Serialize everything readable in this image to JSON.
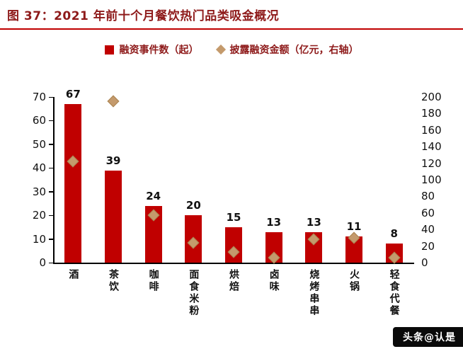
{
  "title": "图 37：2021 年前十个月餐饮热门品类吸金概况",
  "watermark": "头条@认是",
  "legend": [
    {
      "label": "融资事件数（起）",
      "marker": "square",
      "color": "#c00000"
    },
    {
      "label": "披露融资金额（亿元，右轴）",
      "marker": "diamond",
      "color": "#c49a6c"
    }
  ],
  "colors": {
    "bar": "#c00000",
    "diamond": "#c49a6c",
    "diamond_border": "#a8824f",
    "title": "#8e1a1a",
    "underline": "#c00000",
    "axis": "#000000",
    "tick_text": "#111111"
  },
  "chart_data": {
    "type": "bar",
    "title": "2021 年前十个月餐饮热门品类吸金概况",
    "categories": [
      "酒",
      "茶饮",
      "咖啡",
      "面食米粉",
      "烘焙",
      "卤味",
      "烧烤串串",
      "火锅",
      "轻食代餐"
    ],
    "series": [
      {
        "name": "融资事件数（起）",
        "type": "bar",
        "axis": "left",
        "values": [
          67,
          39,
          24,
          20,
          15,
          13,
          13,
          11,
          8
        ]
      },
      {
        "name": "披露融资金额（亿元，右轴）",
        "type": "scatter",
        "axis": "right",
        "values": [
          122,
          195,
          57,
          24,
          13,
          6,
          28,
          30,
          6
        ]
      }
    ],
    "bar_value_labels": [
      67,
      39,
      24,
      20,
      15,
      13,
      13,
      11,
      8
    ],
    "left_axis": {
      "min": 0,
      "max": 70,
      "step": 10
    },
    "right_axis": {
      "min": 0,
      "max": 200,
      "step": 20
    },
    "grid": false,
    "legend_position": "top"
  }
}
